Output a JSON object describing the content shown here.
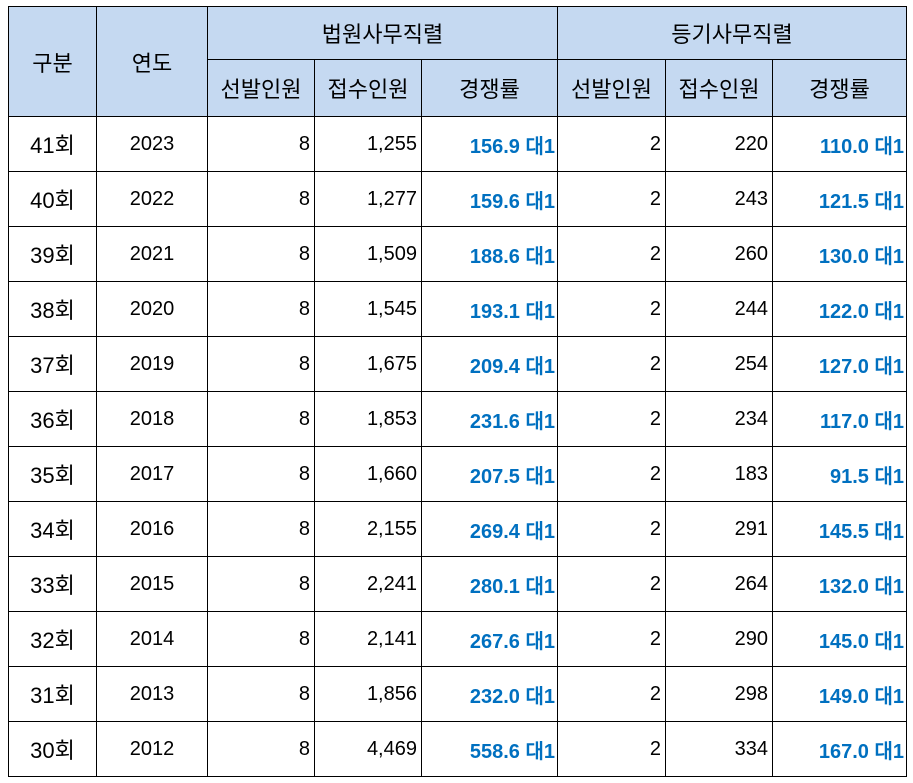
{
  "headers": {
    "category": "구분",
    "year": "연도",
    "group_court": "법원사무직렬",
    "group_registry": "등기사무직렬",
    "selected": "선발인원",
    "applicants": "접수인원",
    "ratio": "경쟁률"
  },
  "rows": [
    {
      "session": "41회",
      "year": "2023",
      "court_selected": "8",
      "court_applicants": "1,255",
      "court_ratio": "156.9 대1",
      "reg_selected": "2",
      "reg_applicants": "220",
      "reg_ratio": "110.0 대1"
    },
    {
      "session": "40회",
      "year": "2022",
      "court_selected": "8",
      "court_applicants": "1,277",
      "court_ratio": "159.6 대1",
      "reg_selected": "2",
      "reg_applicants": "243",
      "reg_ratio": "121.5 대1"
    },
    {
      "session": "39회",
      "year": "2021",
      "court_selected": "8",
      "court_applicants": "1,509",
      "court_ratio": "188.6 대1",
      "reg_selected": "2",
      "reg_applicants": "260",
      "reg_ratio": "130.0 대1"
    },
    {
      "session": "38회",
      "year": "2020",
      "court_selected": "8",
      "court_applicants": "1,545",
      "court_ratio": "193.1 대1",
      "reg_selected": "2",
      "reg_applicants": "244",
      "reg_ratio": "122.0 대1"
    },
    {
      "session": "37회",
      "year": "2019",
      "court_selected": "8",
      "court_applicants": "1,675",
      "court_ratio": "209.4 대1",
      "reg_selected": "2",
      "reg_applicants": "254",
      "reg_ratio": "127.0 대1"
    },
    {
      "session": "36회",
      "year": "2018",
      "court_selected": "8",
      "court_applicants": "1,853",
      "court_ratio": "231.6 대1",
      "reg_selected": "2",
      "reg_applicants": "234",
      "reg_ratio": "117.0 대1"
    },
    {
      "session": "35회",
      "year": "2017",
      "court_selected": "8",
      "court_applicants": "1,660",
      "court_ratio": "207.5 대1",
      "reg_selected": "2",
      "reg_applicants": "183",
      "reg_ratio": "91.5 대1"
    },
    {
      "session": "34회",
      "year": "2016",
      "court_selected": "8",
      "court_applicants": "2,155",
      "court_ratio": "269.4 대1",
      "reg_selected": "2",
      "reg_applicants": "291",
      "reg_ratio": "145.5 대1"
    },
    {
      "session": "33회",
      "year": "2015",
      "court_selected": "8",
      "court_applicants": "2,241",
      "court_ratio": "280.1 대1",
      "reg_selected": "2",
      "reg_applicants": "264",
      "reg_ratio": "132.0 대1"
    },
    {
      "session": "32회",
      "year": "2014",
      "court_selected": "8",
      "court_applicants": "2,141",
      "court_ratio": "267.6 대1",
      "reg_selected": "2",
      "reg_applicants": "290",
      "reg_ratio": "145.0 대1"
    },
    {
      "session": "31회",
      "year": "2013",
      "court_selected": "8",
      "court_applicants": "1,856",
      "court_ratio": "232.0 대1",
      "reg_selected": "2",
      "reg_applicants": "298",
      "reg_ratio": "149.0 대1"
    },
    {
      "session": "30회",
      "year": "2012",
      "court_selected": "8",
      "court_applicants": "4,469",
      "court_ratio": "558.6 대1",
      "reg_selected": "2",
      "reg_applicants": "334",
      "reg_ratio": "167.0 대1"
    }
  ],
  "colors": {
    "header_bg": "#c5d9f1",
    "ratio_text": "#0070c0",
    "border": "#000000"
  }
}
